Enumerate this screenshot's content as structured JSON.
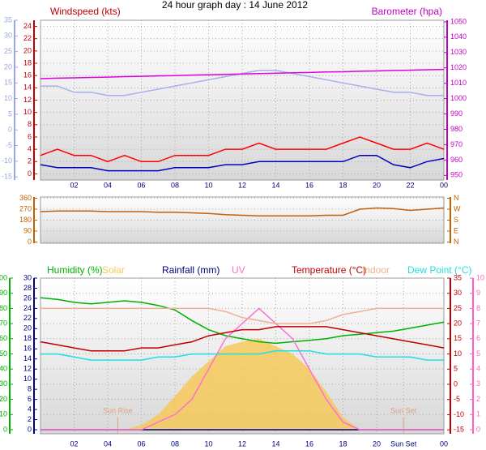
{
  "chart_data": [
    {
      "type": "line",
      "title": "24 hour graph day : 14 June 2012",
      "ylabel": "Windspeed (kts)",
      "y2label": "Barometer (hpa)",
      "x": [
        0,
        1,
        2,
        3,
        4,
        5,
        6,
        7,
        8,
        9,
        10,
        11,
        12,
        13,
        14,
        15,
        16,
        17,
        18,
        19,
        20,
        21,
        22,
        23,
        24
      ],
      "xlim": [
        0,
        24
      ],
      "xticks": [
        {
          "value": 2,
          "label": "02"
        },
        {
          "value": 4,
          "label": "04"
        },
        {
          "value": 6,
          "label": "06"
        },
        {
          "value": 8,
          "label": "08"
        },
        10,
        12,
        14,
        16,
        18,
        20,
        22,
        {
          "value": 24,
          "label": "00"
        }
      ],
      "ylim": [
        -1,
        25
      ],
      "yticks": [
        0,
        2,
        4,
        6,
        8,
        10,
        12,
        14,
        16,
        18,
        20,
        22,
        24
      ],
      "y2lim": [
        947,
        1051
      ],
      "y2ticks": [
        950,
        960,
        970,
        980,
        990,
        1000,
        1010,
        1020,
        1030,
        1040,
        1050
      ],
      "y3lim": [
        -16,
        35
      ],
      "y3ticks": [
        35,
        30,
        25,
        20,
        15,
        10,
        5,
        0,
        -5,
        -10,
        -15
      ],
      "axis_colors": {
        "y": "#c00000",
        "y2": "#c000c0",
        "y3": "#9aa8e0"
      },
      "grid": true,
      "series": [
        {
          "color": "#a8b0ec",
          "axis": "y3",
          "values": [
            14,
            14,
            12,
            12,
            11,
            11,
            12,
            13,
            14,
            15,
            16,
            17,
            18,
            19,
            19,
            18,
            17,
            16,
            15,
            14,
            13,
            12,
            12,
            11,
            11
          ]
        },
        {
          "color": "#e000e0",
          "axis": "y2",
          "values": [
            1013,
            1013.3,
            1013.5,
            1013.8,
            1014,
            1014.3,
            1014.5,
            1014.8,
            1015,
            1015.3,
            1015.5,
            1015.8,
            1016,
            1016.3,
            1016.5,
            1016.8,
            1017,
            1017.3,
            1017.5,
            1017.8,
            1018,
            1018.3,
            1018.5,
            1018.8,
            1019
          ]
        },
        {
          "color": "#ff0000",
          "axis": "y",
          "values": [
            3,
            4,
            3,
            3,
            2,
            3,
            2,
            2,
            3,
            3,
            3,
            4,
            4,
            5,
            4,
            4,
            4,
            4,
            5,
            6,
            5,
            4,
            4,
            5,
            4
          ]
        },
        {
          "color": "#0000c0",
          "axis": "y",
          "values": [
            1.5,
            1,
            1,
            1,
            0.5,
            0.5,
            0.5,
            0.5,
            1,
            1,
            1,
            1.5,
            1.5,
            2,
            2,
            2,
            2,
            2,
            2,
            3,
            3,
            1.5,
            1,
            2,
            2.5
          ]
        }
      ]
    },
    {
      "type": "line",
      "x": [
        0,
        1,
        2,
        3,
        4,
        5,
        6,
        7,
        8,
        9,
        10,
        11,
        12,
        13,
        14,
        15,
        16,
        17,
        18,
        19,
        20,
        21,
        22,
        23,
        24
      ],
      "xlim": [
        0,
        24
      ],
      "ylim": [
        -10,
        370
      ],
      "yticks": [
        0,
        90,
        180,
        270,
        360
      ],
      "y2lim": [
        -10,
        370
      ],
      "y2ticks": [
        {
          "value": 360,
          "label": "N"
        },
        {
          "value": 270,
          "label": "W"
        },
        {
          "value": 180,
          "label": "S"
        },
        {
          "value": 90,
          "label": "E"
        },
        {
          "value": 0,
          "label": "N"
        }
      ],
      "axis_colors": {
        "y": "#c06000",
        "y2": "#c06000"
      },
      "grid": true,
      "series": [
        {
          "color": "#c06010",
          "axis": "y",
          "values": [
            250,
            255,
            255,
            255,
            250,
            250,
            250,
            245,
            245,
            240,
            235,
            225,
            220,
            215,
            215,
            215,
            215,
            220,
            220,
            270,
            280,
            275,
            260,
            270,
            280
          ]
        }
      ]
    },
    {
      "type": "line",
      "x": [
        0,
        1,
        2,
        3,
        4,
        5,
        6,
        7,
        8,
        9,
        10,
        11,
        12,
        13,
        14,
        15,
        16,
        17,
        18,
        19,
        20,
        21,
        22,
        23,
        24
      ],
      "xlim": [
        0,
        24
      ],
      "xticks": [
        {
          "value": 2,
          "label": "02"
        },
        {
          "value": 4,
          "label": "04"
        },
        {
          "value": 6,
          "label": "06"
        },
        {
          "value": 8,
          "label": "08"
        },
        10,
        12,
        14,
        16,
        18,
        20,
        {
          "value": 21.6,
          "label": "Sun Set"
        },
        {
          "value": 24,
          "label": "00"
        }
      ],
      "ylim": [
        -2.7,
        100
      ],
      "yticks": [
        0,
        10,
        20,
        30,
        40,
        50,
        60,
        70,
        80,
        90,
        100
      ],
      "y2lim": [
        -16.3,
        35
      ],
      "y2ticks": [
        -15,
        -10,
        -5,
        0,
        5,
        10,
        15,
        20,
        25,
        30,
        35
      ],
      "y3lim": [
        -0.8,
        30
      ],
      "y3ticks": [
        0,
        2,
        4,
        6,
        8,
        10,
        12,
        14,
        16,
        18,
        20,
        22,
        24,
        26,
        28,
        30
      ],
      "y4lim": [
        -0.27,
        10
      ],
      "y4ticks": [
        0,
        1,
        2,
        3,
        4,
        5,
        6,
        7,
        8,
        9,
        10
      ],
      "axis_colors": {
        "y": "#00b000",
        "y2": "#c00000",
        "y3": "#000080",
        "y4": "#ff60c0"
      },
      "grid": true,
      "annotations": [
        {
          "text": "Sun Rise",
          "x": 4.6
        },
        {
          "text": "Sun Set",
          "x": 21.6
        }
      ],
      "series": [
        {
          "name": "Humidity (%)",
          "color": "#00b000",
          "axis": "y",
          "values": [
            87,
            86,
            84,
            83,
            84,
            85,
            84,
            82,
            79,
            72,
            66,
            62,
            60,
            58,
            57,
            58,
            59,
            60,
            62,
            63,
            64,
            65,
            67,
            69,
            71
          ]
        },
        {
          "name": "Solar",
          "color": "#f8c850",
          "axis": "y",
          "fill": true,
          "values": [
            0,
            0,
            0,
            0,
            0,
            0,
            3,
            10,
            22,
            35,
            45,
            55,
            58,
            60,
            55,
            50,
            40,
            25,
            8,
            0,
            0,
            0,
            0,
            0,
            0
          ]
        },
        {
          "name": "Rainfall (mm)",
          "color": "#000080",
          "axis": "y3",
          "values": [
            0,
            0,
            0,
            0,
            0,
            0,
            0,
            0,
            0,
            0,
            0,
            0,
            0,
            0,
            0,
            0,
            0,
            0,
            0,
            0,
            0,
            0,
            0,
            0,
            0
          ]
        },
        {
          "name": "UV",
          "color": "#ff70d0",
          "axis": "y4",
          "values": [
            0,
            0,
            0,
            0,
            0,
            0,
            0,
            0.5,
            1,
            2,
            4,
            6,
            7,
            8,
            7,
            6,
            4,
            2,
            0.5,
            0,
            0,
            0,
            0,
            0,
            0
          ]
        },
        {
          "name": "Temperature (°C)",
          "color": "#c00000",
          "axis": "y2",
          "values": [
            14,
            13,
            12,
            11,
            11,
            11,
            12,
            12,
            13,
            14,
            16,
            17,
            18,
            18,
            19,
            19,
            19,
            19,
            18,
            17,
            16,
            15,
            14,
            13,
            12
          ]
        },
        {
          "name": "Indoor",
          "color": "#f0b090",
          "axis": "y2",
          "values": [
            25,
            25,
            25,
            25,
            25,
            25,
            25,
            25,
            25,
            25,
            25,
            24,
            22,
            21,
            20,
            20,
            20,
            21,
            23,
            24,
            25,
            25,
            25,
            25,
            25
          ]
        },
        {
          "name": "Dew Point (°C)",
          "color": "#20e0e0",
          "axis": "y2",
          "values": [
            10,
            10,
            9,
            8,
            8,
            8,
            8,
            9,
            9,
            10,
            10,
            10,
            10,
            10,
            11,
            11,
            11,
            10,
            10,
            10,
            9,
            9,
            9,
            8,
            8
          ]
        }
      ]
    }
  ]
}
